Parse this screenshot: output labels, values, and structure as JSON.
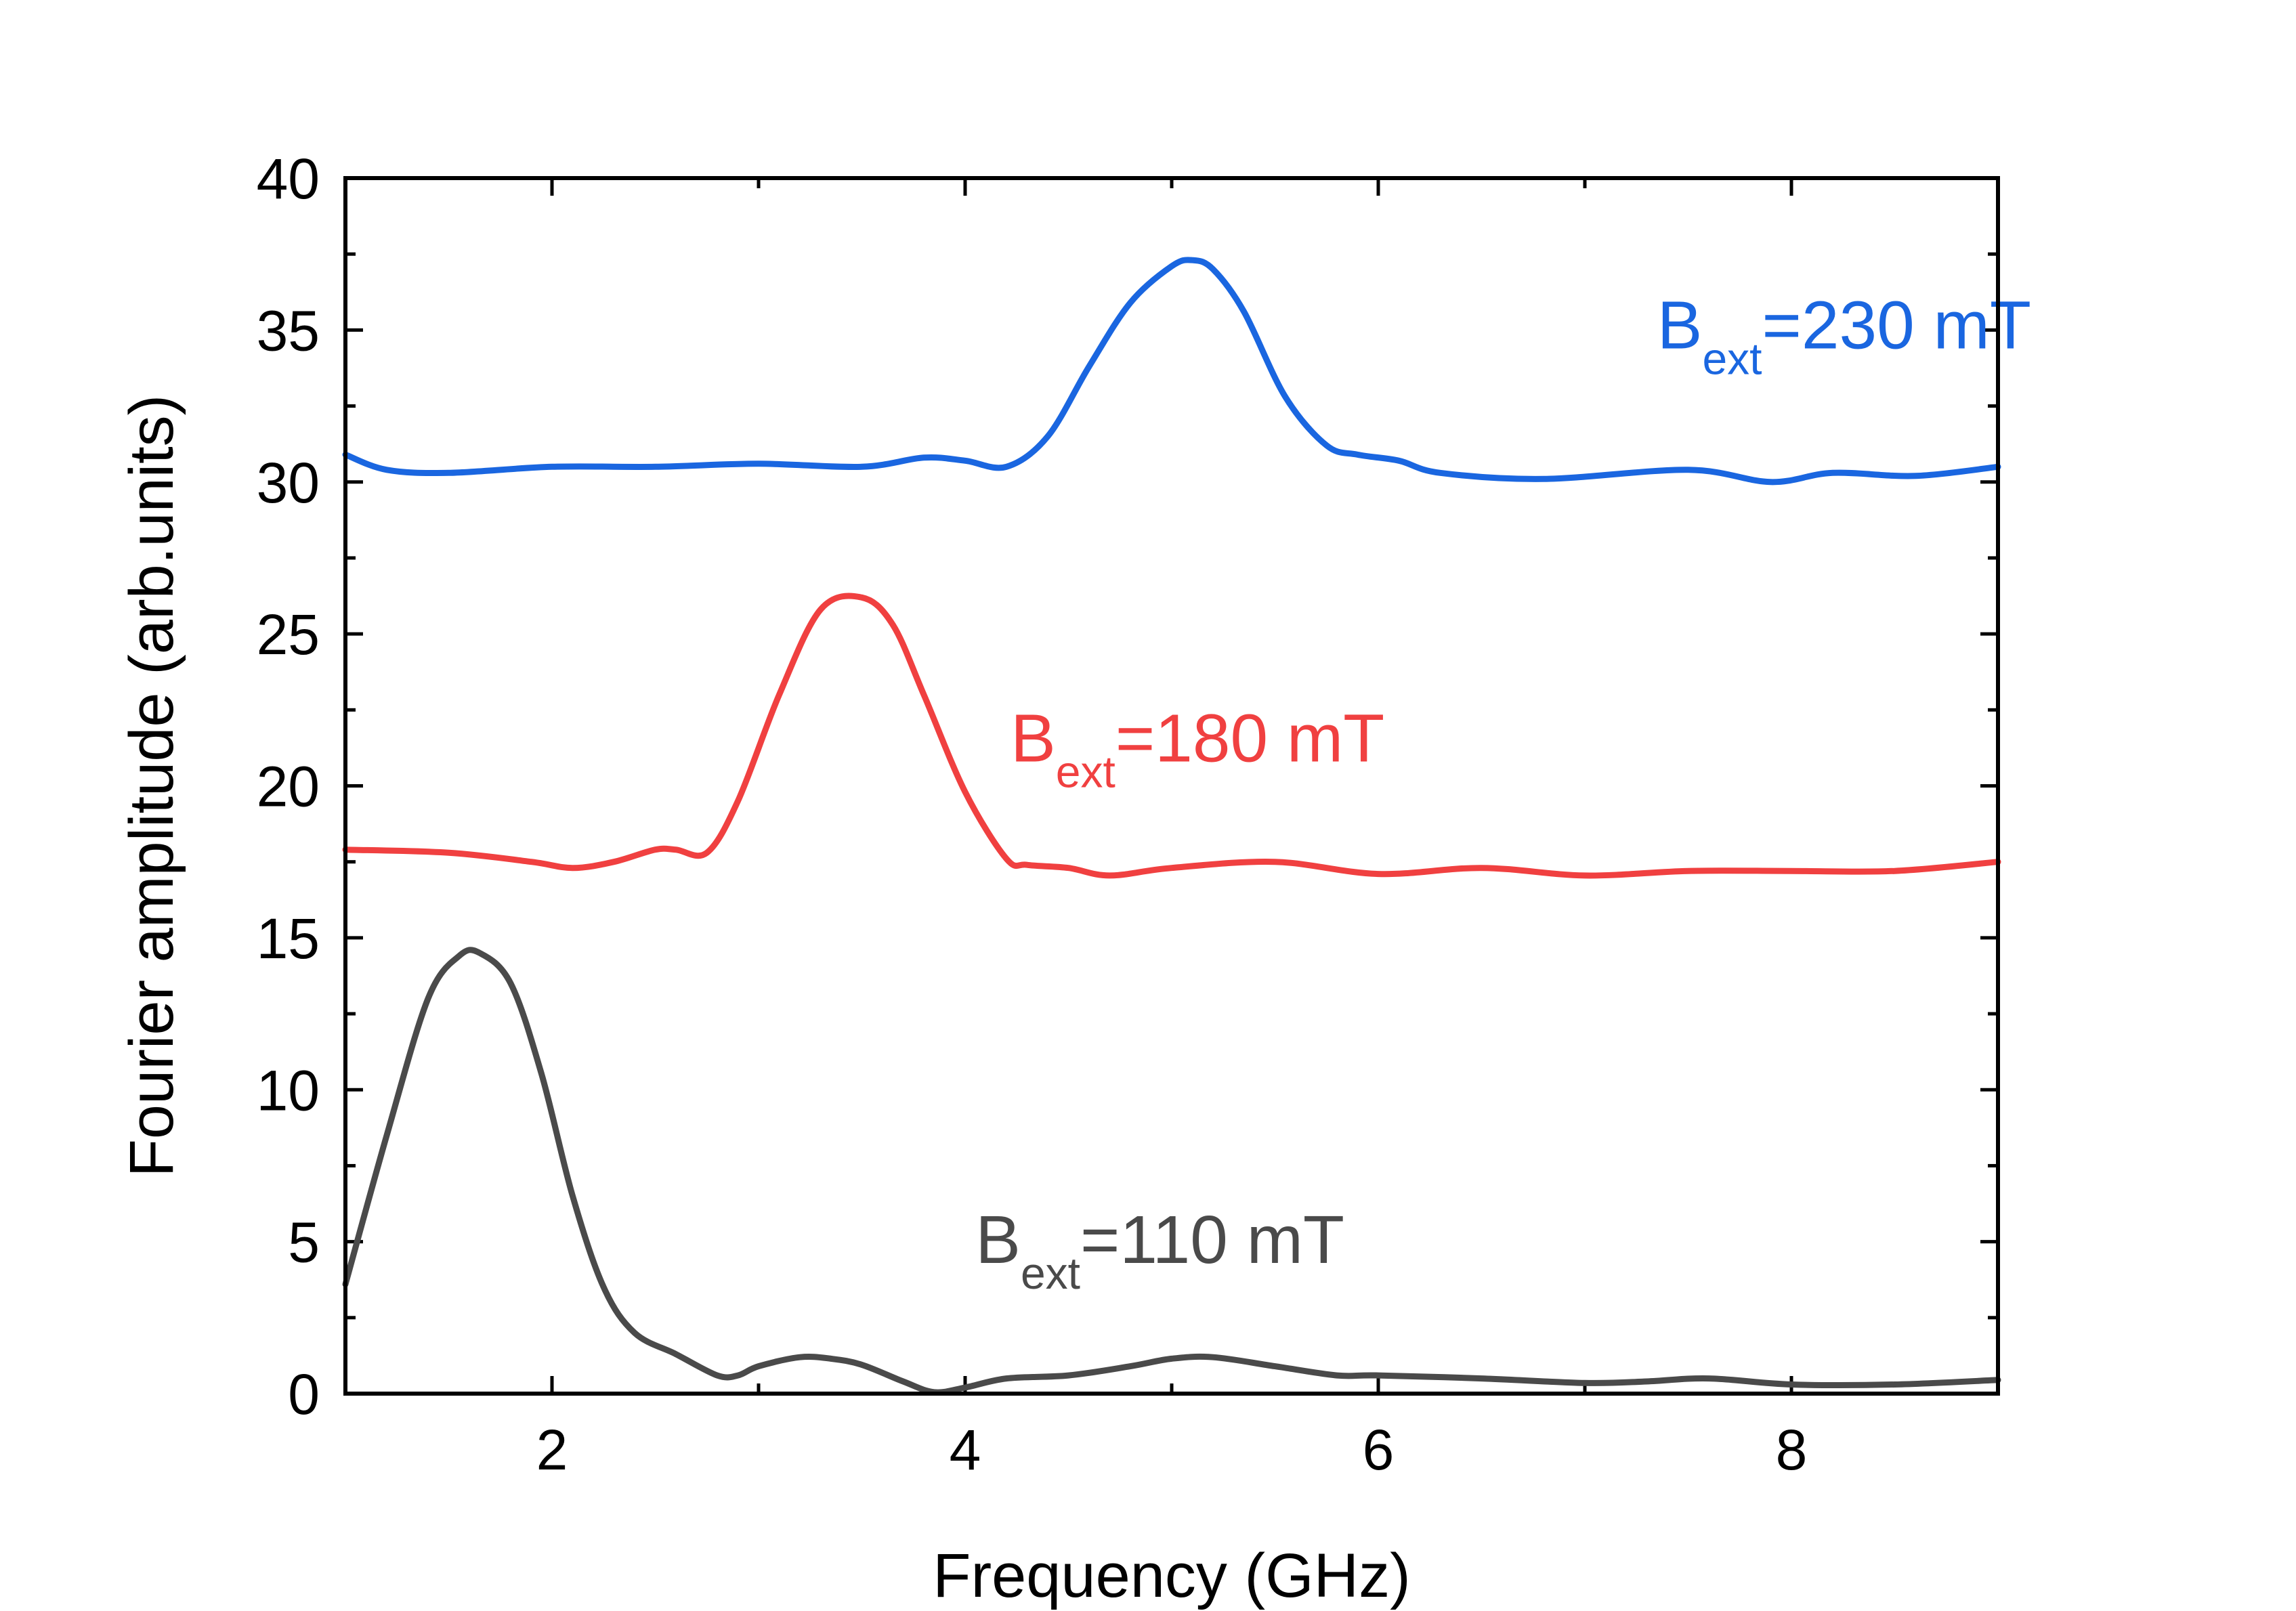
{
  "chart_data": {
    "type": "line",
    "title": "",
    "xlabel": "Frequency (GHz)",
    "ylabel": "Fourier amplitude (arb.units)",
    "xlim": [
      1,
      9
    ],
    "ylim": [
      0,
      40
    ],
    "x_ticks": [
      2,
      4,
      6,
      8
    ],
    "x_tick_labels": [
      "2",
      "4",
      "6",
      "8"
    ],
    "y_ticks": [
      0,
      5,
      10,
      15,
      20,
      25,
      30,
      35,
      40
    ],
    "y_tick_labels": [
      "0",
      "5",
      "10",
      "15",
      "20",
      "25",
      "30",
      "35",
      "40"
    ],
    "grid": false,
    "legend": "none",
    "series": [
      {
        "name": "Bext=110 mT",
        "label_main": "B",
        "label_sub": "ext",
        "label_rest": "=110 mT",
        "color": "#4a4a4a",
        "label_pos": [
          4.05,
          4.3
        ],
        "x": [
          1.0,
          1.2,
          1.4,
          1.55,
          1.65,
          1.8,
          1.95,
          2.1,
          2.25,
          2.4,
          2.6,
          2.8,
          2.9,
          3.0,
          3.2,
          3.35,
          3.5,
          3.7,
          3.85,
          4.0,
          4.2,
          4.5,
          4.8,
          5.0,
          5.2,
          5.5,
          5.8,
          6.0,
          6.5,
          7.0,
          7.3,
          7.6,
          8.0,
          8.5,
          9.0
        ],
        "y": [
          3.6,
          8.5,
          13.0,
          14.4,
          14.5,
          13.5,
          10.5,
          6.5,
          3.5,
          2.0,
          1.3,
          0.6,
          0.6,
          0.9,
          1.2,
          1.15,
          0.95,
          0.4,
          0.05,
          0.2,
          0.5,
          0.6,
          0.9,
          1.15,
          1.2,
          0.9,
          0.6,
          0.6,
          0.5,
          0.35,
          0.4,
          0.5,
          0.3,
          0.3,
          0.45
        ]
      },
      {
        "name": "Bext=180 mT",
        "label_main": "B",
        "label_sub": "ext",
        "label_rest": "=180 mT",
        "color": "#f04040",
        "label_pos": [
          4.22,
          20.8
        ],
        "x": [
          1.0,
          1.5,
          1.9,
          2.1,
          2.3,
          2.5,
          2.6,
          2.75,
          2.9,
          3.1,
          3.3,
          3.5,
          3.65,
          3.8,
          4.0,
          4.2,
          4.3,
          4.5,
          4.7,
          5.0,
          5.5,
          6.0,
          6.5,
          7.0,
          7.5,
          8.0,
          8.5,
          9.0
        ],
        "y": [
          17.9,
          17.8,
          17.5,
          17.3,
          17.5,
          17.9,
          17.9,
          17.8,
          19.5,
          23.0,
          25.8,
          26.2,
          25.3,
          23.0,
          19.8,
          17.6,
          17.4,
          17.3,
          17.05,
          17.3,
          17.5,
          17.1,
          17.3,
          17.05,
          17.2,
          17.2,
          17.2,
          17.5
        ]
      },
      {
        "name": "Bext=230 mT",
        "label_main": "B",
        "label_sub": "ext",
        "label_rest": "=230 mT",
        "color": "#1a66e0",
        "label_pos": [
          7.35,
          34.4
        ],
        "x": [
          1.0,
          1.2,
          1.5,
          2.0,
          2.5,
          3.0,
          3.5,
          3.8,
          4.0,
          4.2,
          4.4,
          4.6,
          4.8,
          5.0,
          5.1,
          5.2,
          5.35,
          5.55,
          5.75,
          5.9,
          6.1,
          6.3,
          6.8,
          7.5,
          7.9,
          8.2,
          8.6,
          9.0
        ],
        "y": [
          30.9,
          30.4,
          30.3,
          30.5,
          30.5,
          30.6,
          30.5,
          30.8,
          30.7,
          30.5,
          31.5,
          33.8,
          35.9,
          37.1,
          37.3,
          37.0,
          35.6,
          32.8,
          31.2,
          30.9,
          30.7,
          30.3,
          30.1,
          30.4,
          30.0,
          30.3,
          30.2,
          30.5
        ]
      }
    ]
  }
}
